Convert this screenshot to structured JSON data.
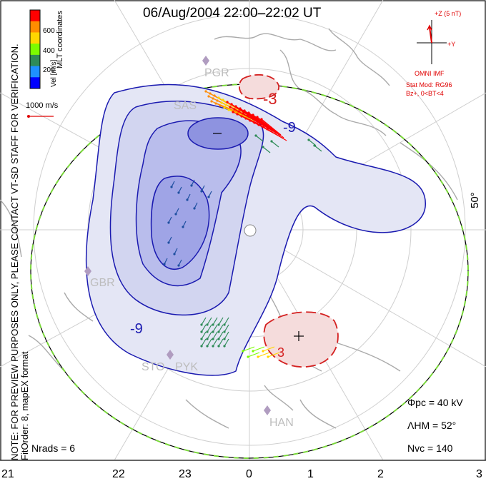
{
  "title": "06/Aug/2004 22:00–22:02 UT",
  "colorbar": {
    "title": "Vel [m/s]",
    "ticks": [
      "600",
      "400",
      "200"
    ],
    "colors": [
      "#0000ff",
      "#1e90ff",
      "#2e8b57",
      "#7cfc00",
      "#ffd700",
      "#ff8c00",
      "#ff0000"
    ]
  },
  "coords_note": "MLT coordinates",
  "scale_vector": "1000 m/s",
  "imf": {
    "axis_z": "+Z (5 nT)",
    "axis_y": "+Y",
    "source": "OMNI IMF",
    "model": "Stat Mod: RG96",
    "condition": "Bz+, 0<BT<4"
  },
  "note_lines": [
    "NOTE: FOR PREVIEW PURPOSES ONLY, PLEASE CONTACT VT-SD STAFF FOR VERIFICATION.",
    "FitOrder: 8, mapEX format"
  ],
  "latitude_label": "50°",
  "mlt_labels": [
    "21",
    "22",
    "23",
    "0",
    "1",
    "2",
    "3"
  ],
  "stations": [
    "PGR",
    "SAS",
    "GBR",
    "STO",
    "PYK",
    "HAN"
  ],
  "contour_labels": [
    "-3",
    "-9",
    "-9",
    "3"
  ],
  "stats": {
    "phi_pc": "Φpc = 40 kV",
    "lambda_hm": "ΛHM = 52°",
    "n_vc": "Nvc = 140",
    "n_rads": "Nrads = 6"
  },
  "colors": {
    "contour": "#1a1ab0",
    "neg_fill": "#c9cdf0",
    "pos_fill": "#f5dcdc",
    "pos_contour": "#d42020",
    "land": "#aaaaaa",
    "boundary_green": "#7ad83a"
  }
}
